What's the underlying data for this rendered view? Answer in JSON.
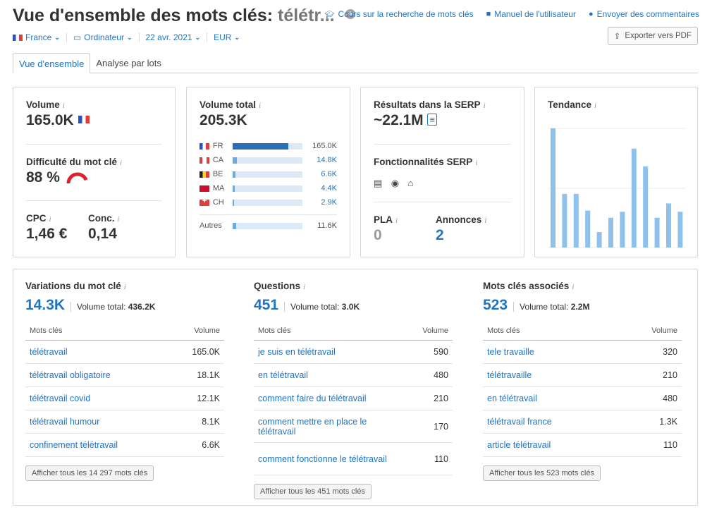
{
  "header": {
    "title": "Vue d'ensemble des mots clés:",
    "keyword": "télétr...",
    "links": [
      "Cours sur la recherche de mots clés",
      "Manuel de l'utilisateur",
      "Envoyer des commentaires"
    ],
    "export_label": "Exporter vers PDF"
  },
  "filters": {
    "country": "France",
    "device": "Ordinateur",
    "date": "22 avr. 2021",
    "currency": "EUR"
  },
  "tabs": [
    "Vue d'ensemble",
    "Analyse par lots"
  ],
  "volume": {
    "label": "Volume",
    "value": "165.0K"
  },
  "difficulty": {
    "label": "Difficulté du mot clé",
    "value": "88 %",
    "fraction": 0.88
  },
  "cpc": {
    "label": "CPC",
    "value": "1,46 €"
  },
  "conc": {
    "label": "Conc.",
    "value": "0,14"
  },
  "total_volume": {
    "label": "Volume total",
    "value": "205.3K",
    "countries": [
      {
        "code": "FR",
        "flag": "fr",
        "value": "165.0K",
        "fraction": 0.8,
        "blue": false
      },
      {
        "code": "CA",
        "flag": "ca",
        "value": "14.8K",
        "fraction": 0.07,
        "blue": true
      },
      {
        "code": "BE",
        "flag": "be",
        "value": "6.6K",
        "fraction": 0.04,
        "blue": true
      },
      {
        "code": "MA",
        "flag": "ma",
        "value": "4.4K",
        "fraction": 0.03,
        "blue": true
      },
      {
        "code": "CH",
        "flag": "ch",
        "value": "2.9K",
        "fraction": 0.02,
        "blue": true
      }
    ],
    "other": {
      "label": "Autres",
      "value": "11.6K",
      "fraction": 0.06
    }
  },
  "serp": {
    "results_label": "Résultats dans la SERP",
    "results_value": "~22.1M",
    "features_label": "Fonctionnalités SERP",
    "pla_label": "PLA",
    "pla_value": "0",
    "ads_label": "Annonces",
    "ads_value": "2"
  },
  "trend": {
    "label": "Tendance",
    "values": [
      1.0,
      0.45,
      0.45,
      0.31,
      0.13,
      0.25,
      0.3,
      0.83,
      0.68,
      0.25,
      0.37,
      0.3
    ]
  },
  "sections": [
    {
      "id": "variations",
      "label": "Variations du mot clé",
      "count": "14.3K",
      "vol_label": "Volume total:",
      "vol_value": "436.2K",
      "col_kw": "Mots clés",
      "col_vol": "Volume",
      "rows": [
        {
          "k": "télétravail",
          "v": "165.0K"
        },
        {
          "k": "télétravail obligatoire",
          "v": "18.1K"
        },
        {
          "k": "télétravail covid",
          "v": "12.1K"
        },
        {
          "k": "télétravail humour",
          "v": "8.1K"
        },
        {
          "k": "confinement télétravail",
          "v": "6.6K"
        }
      ],
      "show_all": "Afficher tous les 14 297 mots clés"
    },
    {
      "id": "questions",
      "label": "Questions",
      "count": "451",
      "vol_label": "Volume total:",
      "vol_value": "3.0K",
      "col_kw": "Mots clés",
      "col_vol": "Volume",
      "rows": [
        {
          "k": "je suis en télétravail",
          "v": "590"
        },
        {
          "k": "en télétravail",
          "v": "480"
        },
        {
          "k": "comment faire du télétravail",
          "v": "210"
        },
        {
          "k": "comment mettre en place le télétravail",
          "v": "170"
        },
        {
          "k": "comment fonctionne le télétravail",
          "v": "110"
        }
      ],
      "show_all": "Afficher tous les 451 mots clés"
    },
    {
      "id": "related",
      "label": "Mots clés associés",
      "count": "523",
      "vol_label": "Volume total:",
      "vol_value": "2.2M",
      "col_kw": "Mots clés",
      "col_vol": "Volume",
      "rows": [
        {
          "k": "tele travaille",
          "v": "320"
        },
        {
          "k": "télétravaille",
          "v": "210"
        },
        {
          "k": "en télétravail",
          "v": "480"
        },
        {
          "k": "télétravail france",
          "v": "1.3K"
        },
        {
          "k": "article télétravail",
          "v": "110"
        }
      ],
      "show_all": "Afficher tous les 523 mots clés"
    }
  ],
  "colors": {
    "accent": "#1f74c4",
    "bar": "#2a6fb8",
    "trend": "#8ec1ec",
    "gauge": "#e0202a"
  }
}
